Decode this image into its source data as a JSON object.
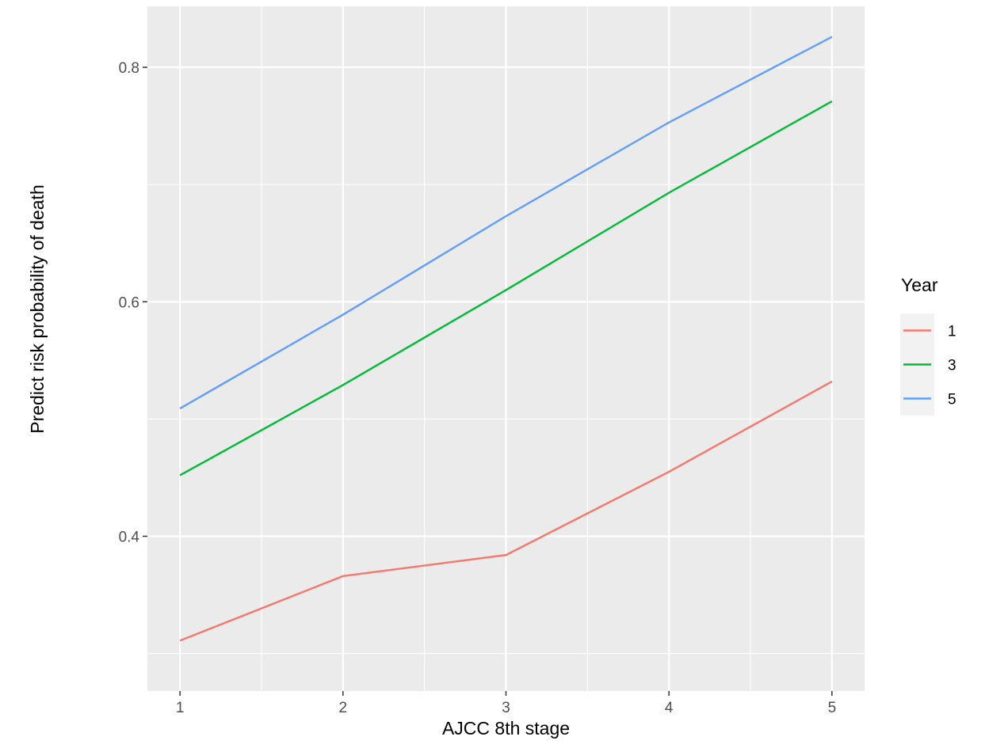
{
  "chart_data": {
    "type": "line",
    "xlabel": "AJCC 8th stage",
    "ylabel": "Predict risk probability of death",
    "x": [
      1,
      2,
      3,
      4,
      5
    ],
    "x_ticks": [
      "1",
      "2",
      "3",
      "4",
      "5"
    ],
    "y_ticks": [
      "0.4",
      "0.6",
      "0.8"
    ],
    "xlim": [
      0.8,
      5.2
    ],
    "ylim": [
      0.268,
      0.852
    ],
    "grid": true,
    "legend": {
      "title": "Year",
      "position": "right"
    },
    "series": [
      {
        "name": "1",
        "color": "#F8766D",
        "values": [
          0.311,
          0.366,
          0.384,
          0.455,
          0.532
        ]
      },
      {
        "name": "3",
        "color": "#00BA38",
        "values": [
          0.452,
          0.529,
          0.61,
          0.693,
          0.771
        ]
      },
      {
        "name": "5",
        "color": "#619CFF",
        "values": [
          0.509,
          0.589,
          0.673,
          0.753,
          0.826
        ]
      }
    ]
  }
}
